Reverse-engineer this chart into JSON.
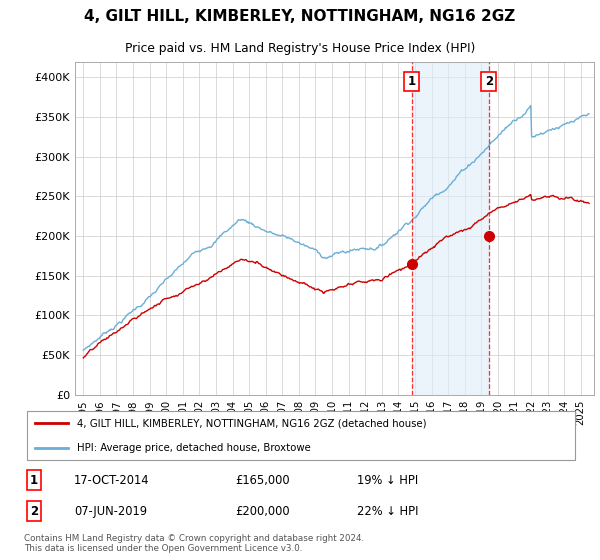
{
  "title": "4, GILT HILL, KIMBERLEY, NOTTINGHAM, NG16 2GZ",
  "subtitle": "Price paid vs. HM Land Registry's House Price Index (HPI)",
  "background_color": "#ffffff",
  "grid_color": "#cccccc",
  "hpi_color": "#6baed6",
  "hpi_fill_color": "#ddeef8",
  "price_color": "#cc0000",
  "ylim": [
    0,
    420000
  ],
  "yticks": [
    0,
    50000,
    100000,
    150000,
    200000,
    250000,
    300000,
    350000,
    400000
  ],
  "ytick_labels": [
    "£0",
    "£50K",
    "£100K",
    "£150K",
    "£200K",
    "£250K",
    "£300K",
    "£350K",
    "£400K"
  ],
  "marker1_year": 2014.8,
  "marker1_price": 165000,
  "marker2_year": 2019.45,
  "marker2_price": 200000,
  "legend_line1": "4, GILT HILL, KIMBERLEY, NOTTINGHAM, NG16 2GZ (detached house)",
  "legend_line2": "HPI: Average price, detached house, Broxtowe",
  "annotation1_num": "1",
  "annotation1_date": "17-OCT-2014",
  "annotation1_price": "£165,000",
  "annotation1_hpi": "19% ↓ HPI",
  "annotation2_num": "2",
  "annotation2_date": "07-JUN-2019",
  "annotation2_price": "£200,000",
  "annotation2_hpi": "22% ↓ HPI",
  "footer": "Contains HM Land Registry data © Crown copyright and database right 2024.\nThis data is licensed under the Open Government Licence v3.0."
}
